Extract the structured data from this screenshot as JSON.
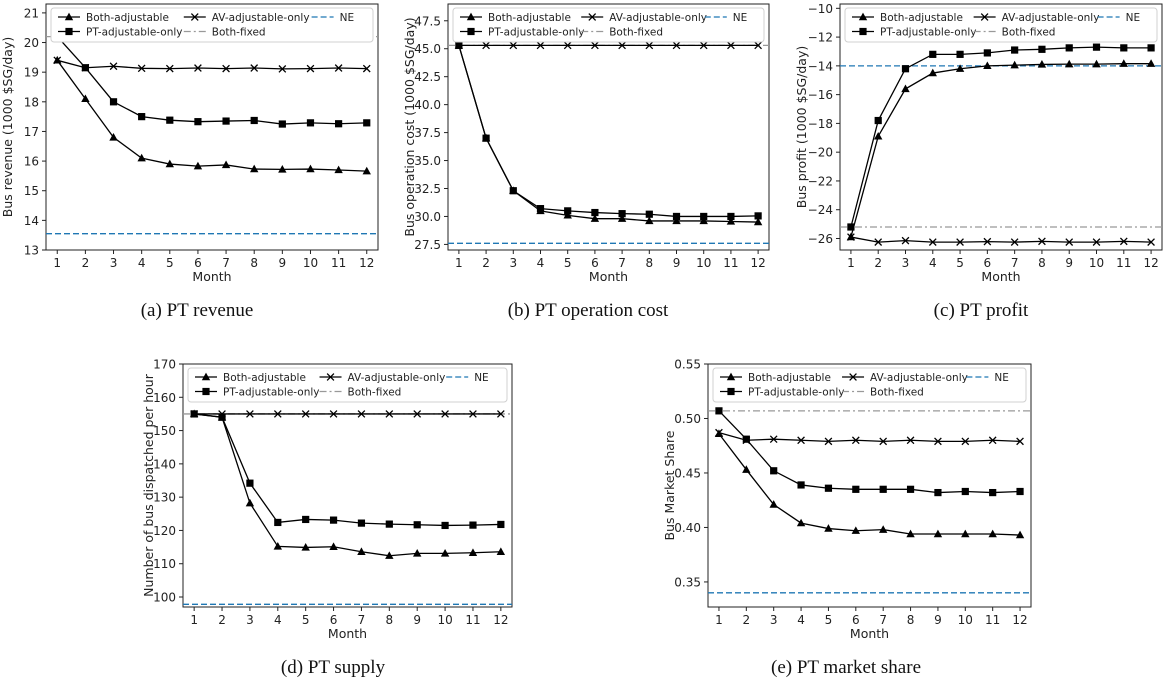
{
  "figure": {
    "captions": [
      "(a) PT revenue",
      "(b) PT operation cost",
      "(c) PT profit",
      "(d) PT supply",
      "(e) PT market share"
    ]
  },
  "legend_labels": {
    "both_adjustable": "Both-adjustable",
    "pt_adjustable_only": "PT-adjustable-only",
    "av_adjustable_only": "AV-adjustable-only",
    "both_fixed": "Both-fixed",
    "ne": "NE"
  },
  "colors": {
    "series": "#000000",
    "both_fixed": "#999999",
    "ne": "#1f77b4",
    "frame": "#222222"
  },
  "chart_data": [
    {
      "type": "line",
      "title": "",
      "xlabel": "Month",
      "ylabel": "Bus revenue (1000 $SG/day)",
      "x": [
        1,
        2,
        3,
        4,
        5,
        6,
        7,
        8,
        9,
        10,
        11,
        12
      ],
      "xlim": [
        0.6,
        12.4
      ],
      "ylim": [
        13,
        21.3
      ],
      "yticks": [
        13,
        14,
        15,
        16,
        17,
        18,
        19,
        20,
        21
      ],
      "yticks_labels": [
        "13",
        "14",
        "15",
        "16",
        "17",
        "18",
        "19",
        "20",
        "21"
      ],
      "legend": "top",
      "series": [
        {
          "name": "Both-adjustable",
          "marker": "triangle",
          "values": [
            19.4,
            18.1,
            16.8,
            16.1,
            15.9,
            15.83,
            15.87,
            15.73,
            15.72,
            15.73,
            15.7,
            15.66
          ]
        },
        {
          "name": "PT-adjustable-only",
          "marker": "square",
          "values": [
            20.2,
            19.15,
            18.0,
            17.5,
            17.38,
            17.33,
            17.35,
            17.37,
            17.25,
            17.29,
            17.26,
            17.29
          ]
        },
        {
          "name": "AV-adjustable-only",
          "marker": "x",
          "values": [
            19.4,
            19.15,
            19.2,
            19.13,
            19.12,
            19.14,
            19.12,
            19.14,
            19.11,
            19.12,
            19.14,
            19.12
          ]
        },
        {
          "name": "Both-fixed",
          "constant": 20.2
        },
        {
          "name": "NE",
          "constant": 13.55
        }
      ]
    },
    {
      "type": "line",
      "title": "",
      "xlabel": "Month",
      "ylabel": "Bus operation cost (1000 $SG/day)",
      "x": [
        1,
        2,
        3,
        4,
        5,
        6,
        7,
        8,
        9,
        10,
        11,
        12
      ],
      "xlim": [
        0.6,
        12.4
      ],
      "ylim": [
        27.0,
        49.0
      ],
      "yticks": [
        27.5,
        30,
        32.5,
        35,
        37.5,
        40,
        42.5,
        45,
        47.5
      ],
      "yticks_labels": [
        "27.5",
        "30.0",
        "32.5",
        "35.0",
        "37.5",
        "40.0",
        "42.5",
        "45.0",
        "47.5"
      ],
      "legend": "top",
      "series": [
        {
          "name": "Both-adjustable",
          "marker": "triangle",
          "values": [
            45.3,
            37.0,
            32.3,
            30.5,
            30.1,
            29.8,
            29.8,
            29.6,
            29.6,
            29.6,
            29.55,
            29.5
          ]
        },
        {
          "name": "PT-adjustable-only",
          "marker": "square",
          "values": [
            45.3,
            37.0,
            32.3,
            30.7,
            30.5,
            30.35,
            30.25,
            30.2,
            30.0,
            30.0,
            30.0,
            30.05
          ]
        },
        {
          "name": "AV-adjustable-only",
          "marker": "x",
          "values": [
            45.3,
            45.3,
            45.3,
            45.3,
            45.3,
            45.3,
            45.3,
            45.3,
            45.3,
            45.3,
            45.3,
            45.3
          ]
        },
        {
          "name": "Both-fixed",
          "constant": 45.3
        },
        {
          "name": "NE",
          "constant": 27.6
        }
      ]
    },
    {
      "type": "line",
      "title": "",
      "xlabel": "Month",
      "ylabel": "Bus profit (1000 $SG/day)",
      "x": [
        1,
        2,
        3,
        4,
        5,
        6,
        7,
        8,
        9,
        10,
        11,
        12
      ],
      "xlim": [
        0.6,
        12.4
      ],
      "ylim": [
        -26.8,
        -9.7
      ],
      "yticks": [
        -26,
        -24,
        -22,
        -20,
        -18,
        -16,
        -14,
        -12,
        -10
      ],
      "yticks_labels": [
        "−26",
        "−24",
        "−22",
        "−20",
        "−18",
        "−16",
        "−14",
        "−12",
        "−10"
      ],
      "legend": "top",
      "series": [
        {
          "name": "Both-adjustable",
          "marker": "triangle",
          "values": [
            -25.9,
            -18.9,
            -15.6,
            -14.5,
            -14.2,
            -14.0,
            -13.95,
            -13.9,
            -13.88,
            -13.88,
            -13.85,
            -13.85
          ]
        },
        {
          "name": "PT-adjustable-only",
          "marker": "square",
          "values": [
            -25.2,
            -17.8,
            -14.2,
            -13.2,
            -13.2,
            -13.1,
            -12.9,
            -12.85,
            -12.75,
            -12.7,
            -12.75,
            -12.75
          ]
        },
        {
          "name": "AV-adjustable-only",
          "marker": "x",
          "values": [
            -25.9,
            -26.25,
            -26.15,
            -26.25,
            -26.25,
            -26.22,
            -26.25,
            -26.2,
            -26.25,
            -26.25,
            -26.2,
            -26.25
          ]
        },
        {
          "name": "Both-fixed",
          "constant": -25.2
        },
        {
          "name": "NE",
          "constant": -14.0
        }
      ]
    },
    {
      "type": "line",
      "title": "",
      "xlabel": "Month",
      "ylabel": "Number of bus dispatched per hour",
      "x": [
        1,
        2,
        3,
        4,
        5,
        6,
        7,
        8,
        9,
        10,
        11,
        12
      ],
      "xlim": [
        0.6,
        12.4
      ],
      "ylim": [
        97,
        170
      ],
      "yticks": [
        100,
        110,
        120,
        130,
        140,
        150,
        160,
        170
      ],
      "yticks_labels": [
        "100",
        "110",
        "120",
        "130",
        "140",
        "150",
        "160",
        "170"
      ],
      "legend": "top",
      "series": [
        {
          "name": "Both-adjustable",
          "marker": "triangle",
          "values": [
            155,
            154,
            128.2,
            115.2,
            114.9,
            115.1,
            113.6,
            112.4,
            113.1,
            113.1,
            113.3,
            113.6
          ]
        },
        {
          "name": "PT-adjustable-only",
          "marker": "square",
          "values": [
            155,
            154,
            134.2,
            122.4,
            123.3,
            123.1,
            122.2,
            121.9,
            121.7,
            121.5,
            121.6,
            121.8
          ]
        },
        {
          "name": "AV-adjustable-only",
          "marker": "x",
          "values": [
            155,
            155,
            155,
            155,
            155,
            155,
            155,
            155,
            155,
            155,
            155,
            155
          ]
        },
        {
          "name": "Both-fixed",
          "constant": 155
        },
        {
          "name": "NE",
          "constant": 97.8
        }
      ]
    },
    {
      "type": "line",
      "title": "",
      "xlabel": "Month",
      "ylabel": "Bus Market Share",
      "x": [
        1,
        2,
        3,
        4,
        5,
        6,
        7,
        8,
        9,
        10,
        11,
        12
      ],
      "xlim": [
        0.6,
        12.4
      ],
      "ylim": [
        0.327,
        0.55
      ],
      "yticks": [
        0.35,
        0.4,
        0.45,
        0.5,
        0.55
      ],
      "yticks_labels": [
        "0.35",
        "0.40",
        "0.45",
        "0.50",
        "0.55"
      ],
      "legend": "top",
      "series": [
        {
          "name": "Both-adjustable",
          "marker": "triangle",
          "values": [
            0.486,
            0.453,
            0.421,
            0.404,
            0.399,
            0.397,
            0.398,
            0.394,
            0.394,
            0.394,
            0.394,
            0.393
          ]
        },
        {
          "name": "PT-adjustable-only",
          "marker": "square",
          "values": [
            0.507,
            0.481,
            0.452,
            0.439,
            0.436,
            0.435,
            0.435,
            0.435,
            0.432,
            0.433,
            0.432,
            0.433
          ]
        },
        {
          "name": "AV-adjustable-only",
          "marker": "x",
          "values": [
            0.487,
            0.48,
            0.481,
            0.48,
            0.479,
            0.48,
            0.479,
            0.48,
            0.479,
            0.479,
            0.48,
            0.479
          ]
        },
        {
          "name": "Both-fixed",
          "constant": 0.507
        },
        {
          "name": "NE",
          "constant": 0.34
        }
      ]
    }
  ]
}
